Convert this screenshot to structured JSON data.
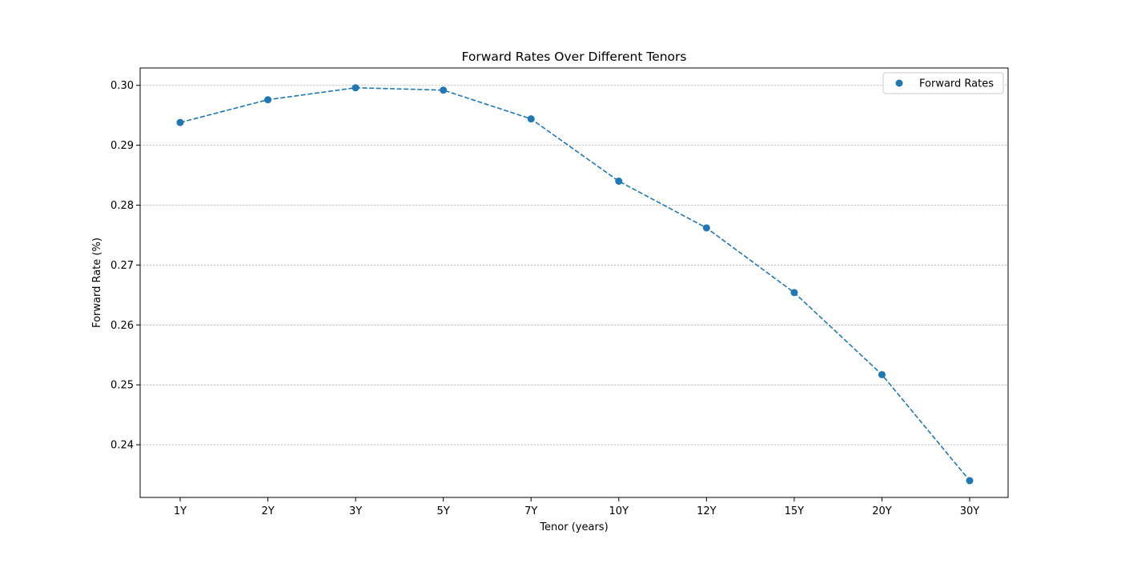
{
  "chart_data": {
    "type": "line",
    "title": "Forward Rates Over Different Tenors",
    "xlabel": "Tenor (years)",
    "ylabel": "Forward Rate (%)",
    "categories": [
      "1Y",
      "2Y",
      "3Y",
      "5Y",
      "7Y",
      "10Y",
      "12Y",
      "15Y",
      "20Y",
      "30Y"
    ],
    "series": [
      {
        "name": "Forward Rates",
        "values": [
          0.2938,
          0.2976,
          0.2996,
          0.2992,
          0.2944,
          0.284,
          0.2762,
          0.2654,
          0.2517,
          0.234
        ],
        "color": "#1f77b4",
        "line_style": "dashed",
        "marker": "circle"
      }
    ],
    "ylim": [
      0.2312,
      0.3029
    ],
    "yticks": [
      "0.24",
      "0.25",
      "0.26",
      "0.27",
      "0.28",
      "0.29",
      "0.30"
    ],
    "ytick_values": [
      0.24,
      0.25,
      0.26,
      0.27,
      0.28,
      0.29,
      0.3
    ],
    "grid": "y-dashed",
    "legend_position": "upper-right"
  }
}
